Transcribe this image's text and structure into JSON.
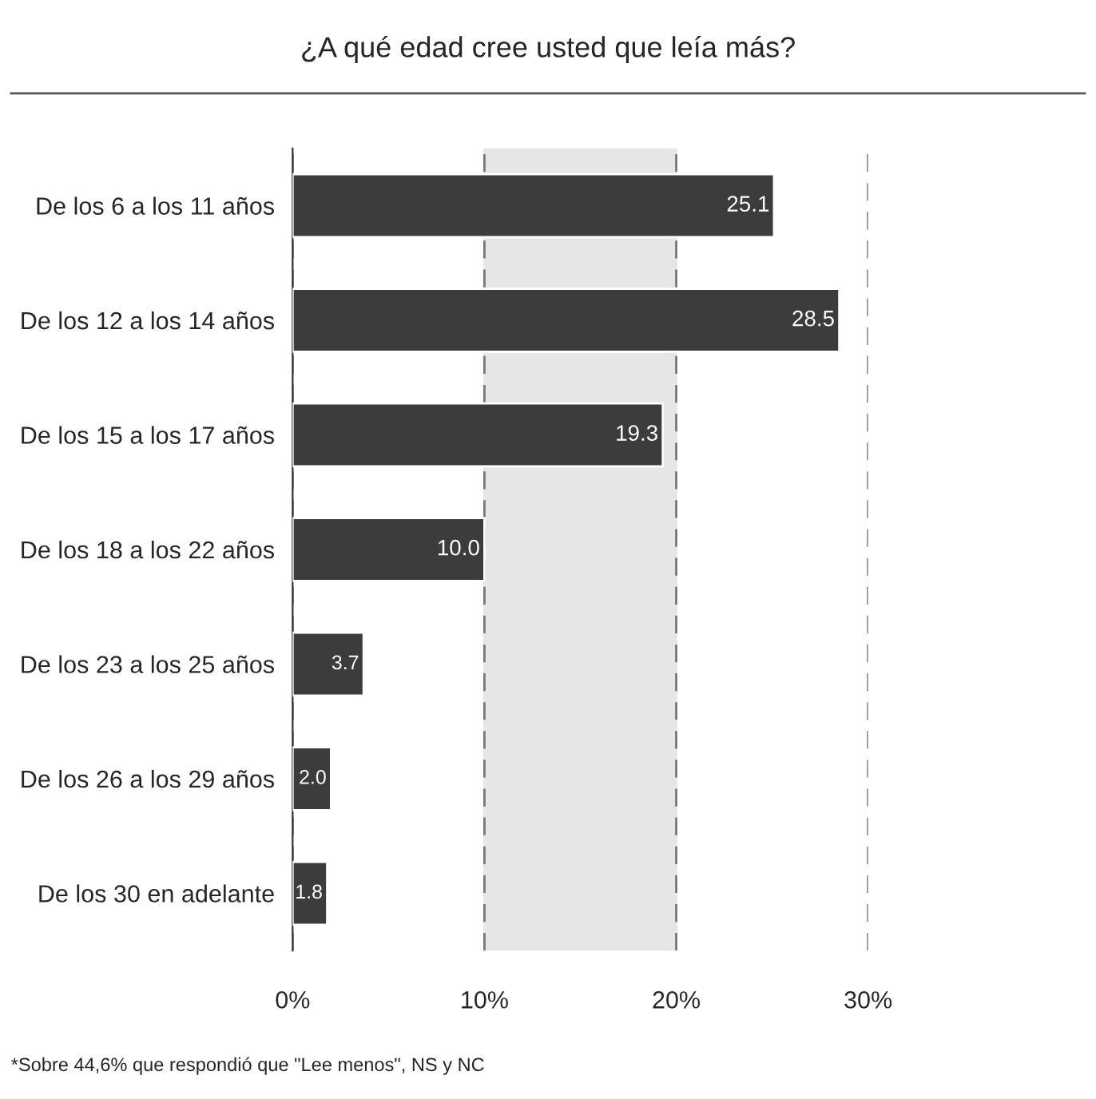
{
  "chart_data": {
    "type": "bar",
    "orientation": "horizontal",
    "title": "¿A qué edad cree usted que leía más?",
    "categories": [
      "De los 6 a los 11 años",
      "De los 12 a los 14 años",
      "De los 15 a los 17 años",
      "De los 18 a los 22 años",
      "De los 23 a los 25 años",
      "De los 26 a los 29 años",
      "De los 30 en adelante"
    ],
    "values": [
      25.1,
      28.5,
      19.3,
      10.0,
      3.7,
      2.0,
      1.8
    ],
    "value_labels": [
      "25.1",
      "28.5",
      "19.3",
      "10.0",
      "3.7",
      "2.0",
      "1.8"
    ],
    "color": "#3c3c3c",
    "xlim": [
      0,
      30
    ],
    "xticks": [
      {
        "value": 0,
        "label": "0%"
      },
      {
        "value": 10,
        "label": "10%"
      },
      {
        "value": 20,
        "label": "20%"
      },
      {
        "value": 30,
        "label": "30%"
      }
    ],
    "bands": [
      {
        "axis": "x",
        "from": 10,
        "to": 20,
        "label": null,
        "color": "#e6e6e6"
      }
    ],
    "grid": "x",
    "annotations": [
      "*Sobre 44,6% que respondió que \"Lee menos\", NS y NC"
    ]
  }
}
